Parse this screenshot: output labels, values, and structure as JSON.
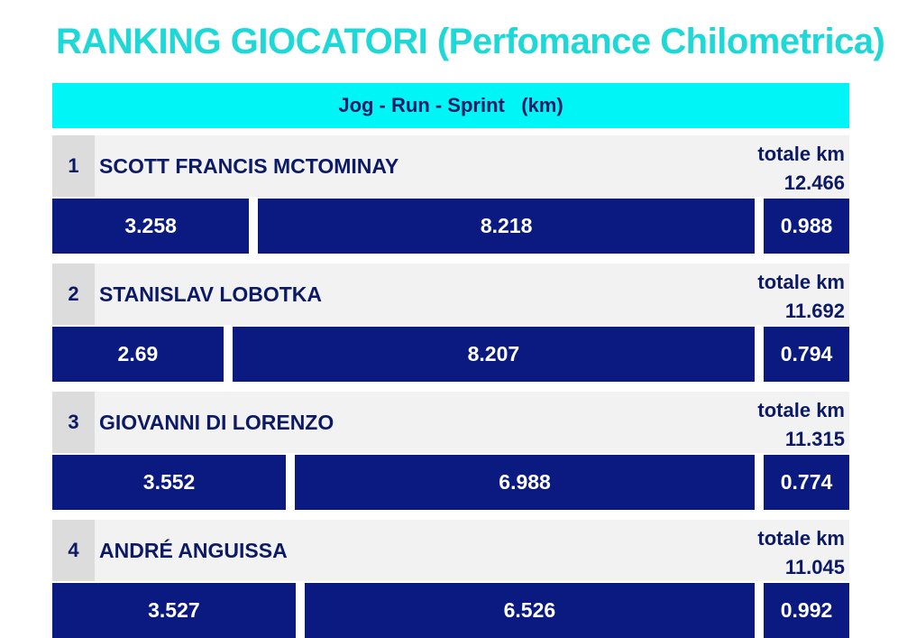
{
  "title": "RANKING GIOCATORI (Perfomance Chilometrica)",
  "header": "Jog - Run - Sprint   (km)",
  "players": [
    {
      "rank": 1,
      "name": "SCOTT FRANCIS MCTOMINAY",
      "total_label": "totale km",
      "total": 12.466,
      "jog": 3.258,
      "run": 8.218,
      "sprint": 0.988
    },
    {
      "rank": 2,
      "name": "STANISLAV LOBOTKA",
      "total_label": "totale km",
      "total": 11.692,
      "jog": 2.69,
      "run": 8.207,
      "sprint": 0.794
    },
    {
      "rank": 3,
      "name": "GIOVANNI DI LORENZO",
      "total_label": "totale km",
      "total": 11.315,
      "jog": 3.552,
      "run": 6.988,
      "sprint": 0.774
    },
    {
      "rank": 4,
      "name": "ANDRÉ ANGUISSA",
      "total_label": "totale km",
      "total": 11.045,
      "jog": 3.527,
      "run": 6.526,
      "sprint": 0.992
    }
  ]
}
